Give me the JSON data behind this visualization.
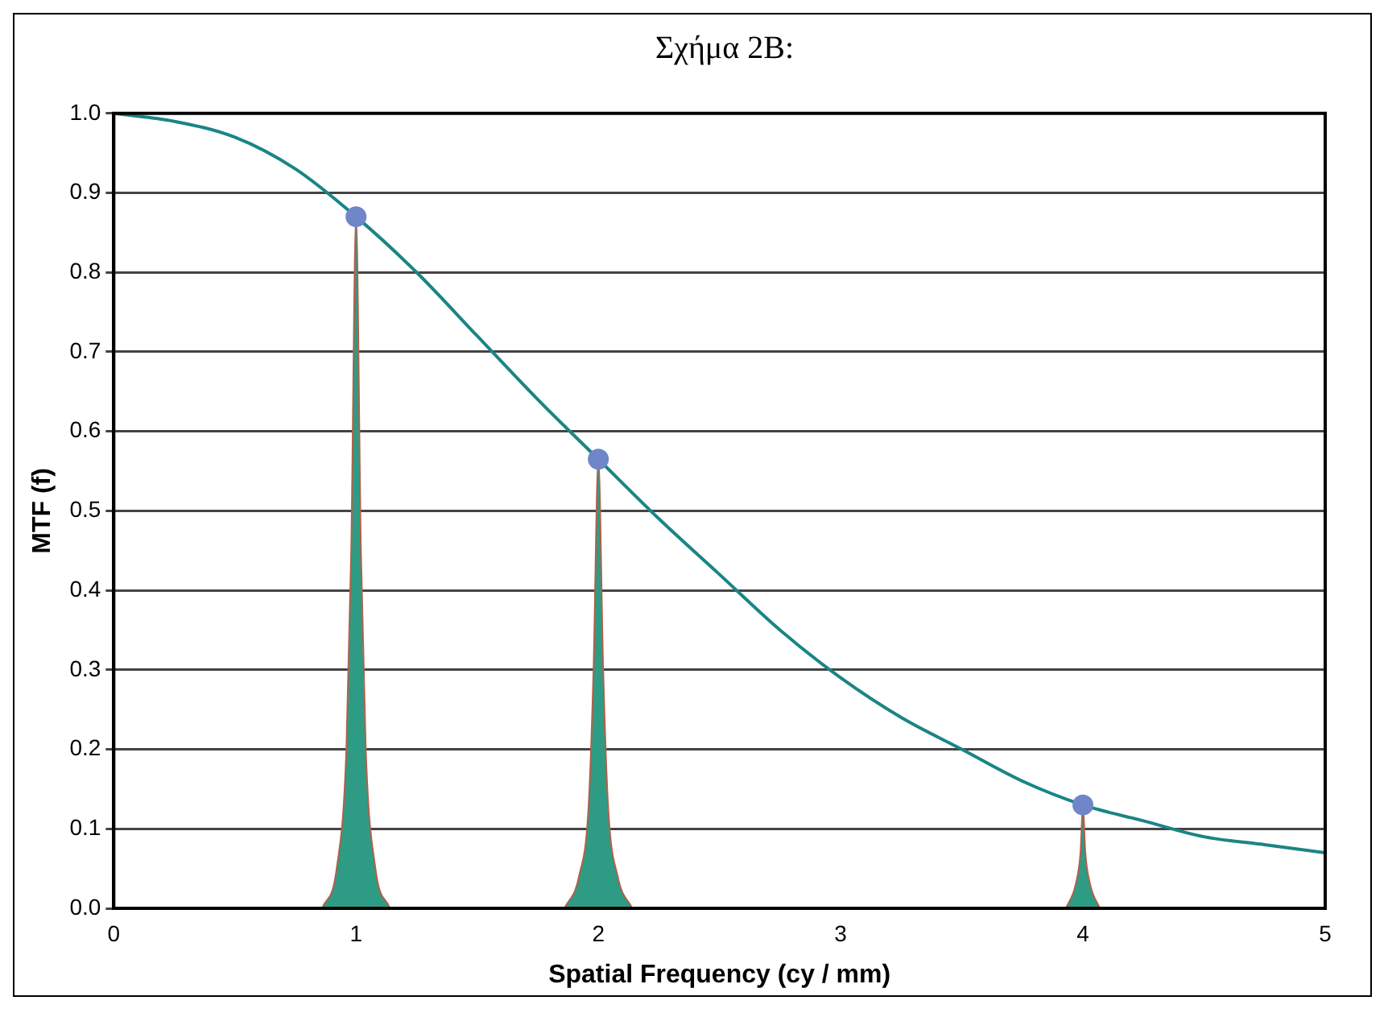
{
  "chart_data": {
    "type": "line",
    "title": "Σχήμα 2B:",
    "xlabel": "Spatial Frequency (cy / mm)",
    "ylabel": "MTF (f)",
    "xlim": [
      0,
      5
    ],
    "xticks": [
      0,
      1,
      2,
      3,
      4,
      5
    ],
    "ylim": [
      0,
      1.0
    ],
    "yticks": [
      {
        "value": 0,
        "label": "0.0"
      },
      0.1,
      0.2,
      0.3,
      0.4,
      0.5,
      0.6,
      0.7,
      0.8,
      0.9,
      {
        "value": 1,
        "label": "1.0"
      }
    ],
    "grid": "y",
    "series": [
      {
        "color": "#1a8585",
        "x": [
          0,
          0.25,
          0.5,
          0.75,
          1,
          1.25,
          1.5,
          1.75,
          2,
          2.25,
          2.5,
          2.75,
          3,
          3.25,
          3.5,
          3.75,
          4,
          4.25,
          4.5,
          4.75,
          5
        ],
        "values": [
          1.0,
          0.99,
          0.97,
          0.93,
          0.87,
          0.8,
          0.72,
          0.64,
          0.565,
          0.49,
          0.42,
          0.35,
          0.29,
          0.24,
          0.2,
          0.16,
          0.13,
          0.11,
          0.09,
          0.08,
          0.07
        ]
      },
      {
        "type": "area",
        "color": "#2e9c84",
        "x": [
          0.86,
          0.92,
          0.96,
          0.98,
          1.0,
          1.02,
          1.04,
          1.08,
          1.14
        ],
        "values": [
          0,
          0.05,
          0.2,
          0.45,
          0.87,
          0.45,
          0.2,
          0.05,
          0
        ]
      },
      {
        "type": "area",
        "color": "#2e9c84",
        "x": [
          1.86,
          1.92,
          1.96,
          1.98,
          2.0,
          2.02,
          2.04,
          2.08,
          2.14
        ],
        "values": [
          0,
          0.04,
          0.13,
          0.3,
          0.565,
          0.3,
          0.13,
          0.04,
          0
        ]
      },
      {
        "type": "area",
        "color": "#2e9c84",
        "x": [
          3.93,
          3.97,
          3.99,
          4.0,
          4.01,
          4.03,
          4.07
        ],
        "values": [
          0,
          0.03,
          0.07,
          0.13,
          0.07,
          0.03,
          0
        ]
      },
      {
        "type": "scatter",
        "color": "#6f86c8",
        "marker": "circle",
        "x": [
          1,
          2,
          4
        ],
        "values": [
          0.87,
          0.565,
          0.13
        ]
      }
    ]
  }
}
